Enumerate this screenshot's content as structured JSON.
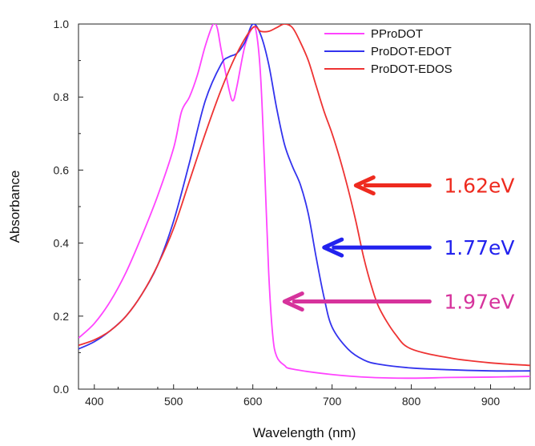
{
  "chart_data": {
    "type": "line",
    "xlabel": "Wavelength (nm)",
    "ylabel": "Absorbance",
    "xlim": [
      380,
      950
    ],
    "ylim": [
      0.0,
      1.0
    ],
    "x_ticks": [
      400,
      500,
      600,
      700,
      800,
      900
    ],
    "y_ticks": [
      0.0,
      0.2,
      0.4,
      0.6,
      0.8,
      1.0
    ],
    "grid": false,
    "legend_position": "top-right",
    "series": [
      {
        "name": "PProDOT",
        "color": "#ff44ff",
        "x": [
          380,
          400,
          420,
          440,
          460,
          480,
          500,
          510,
          520,
          530,
          540,
          550,
          555,
          560,
          570,
          575,
          580,
          590,
          600,
          605,
          610,
          615,
          620,
          625,
          630,
          640,
          650,
          700,
          750,
          800,
          850,
          900,
          950
        ],
        "y": [
          0.14,
          0.18,
          0.24,
          0.32,
          0.42,
          0.53,
          0.66,
          0.76,
          0.8,
          0.86,
          0.94,
          1.0,
          0.99,
          0.93,
          0.82,
          0.79,
          0.83,
          0.94,
          0.99,
          0.97,
          0.85,
          0.6,
          0.32,
          0.15,
          0.09,
          0.065,
          0.055,
          0.04,
          0.032,
          0.03,
          0.032,
          0.033,
          0.035
        ]
      },
      {
        "name": "ProDOT-EDOT",
        "color": "#3333ee",
        "x": [
          380,
          400,
          420,
          440,
          460,
          480,
          500,
          520,
          540,
          560,
          570,
          580,
          590,
          600,
          610,
          620,
          630,
          640,
          650,
          660,
          670,
          680,
          690,
          700,
          720,
          740,
          760,
          800,
          850,
          900,
          950
        ],
        "y": [
          0.11,
          0.13,
          0.16,
          0.2,
          0.26,
          0.34,
          0.46,
          0.62,
          0.79,
          0.89,
          0.91,
          0.92,
          0.95,
          1.0,
          0.97,
          0.89,
          0.77,
          0.67,
          0.61,
          0.56,
          0.48,
          0.36,
          0.25,
          0.17,
          0.11,
          0.08,
          0.068,
          0.058,
          0.053,
          0.05,
          0.05
        ]
      },
      {
        "name": "ProDOT-EDOS",
        "color": "#ee3333",
        "x": [
          380,
          400,
          420,
          440,
          460,
          480,
          500,
          520,
          540,
          560,
          580,
          600,
          610,
          620,
          630,
          640,
          650,
          660,
          670,
          680,
          690,
          700,
          710,
          720,
          730,
          740,
          750,
          760,
          780,
          800,
          850,
          900,
          950
        ],
        "y": [
          0.12,
          0.135,
          0.16,
          0.2,
          0.26,
          0.34,
          0.44,
          0.57,
          0.7,
          0.82,
          0.92,
          0.99,
          0.98,
          0.98,
          0.99,
          1.0,
          0.99,
          0.95,
          0.9,
          0.83,
          0.76,
          0.7,
          0.63,
          0.55,
          0.46,
          0.36,
          0.28,
          0.22,
          0.15,
          0.11,
          0.085,
          0.072,
          0.065
        ]
      }
    ],
    "annotations": [
      {
        "text": "1.62eV",
        "color": "#ee2b1f",
        "tip_x": 730,
        "y": 0.558,
        "tail_x": 823
      },
      {
        "text": "1.77eV",
        "color": "#2222ee",
        "tip_x": 690,
        "y": 0.388,
        "tail_x": 823
      },
      {
        "text": "1.97eV",
        "color": "#d6339c",
        "tip_x": 640,
        "y": 0.24,
        "tail_x": 823
      }
    ]
  }
}
